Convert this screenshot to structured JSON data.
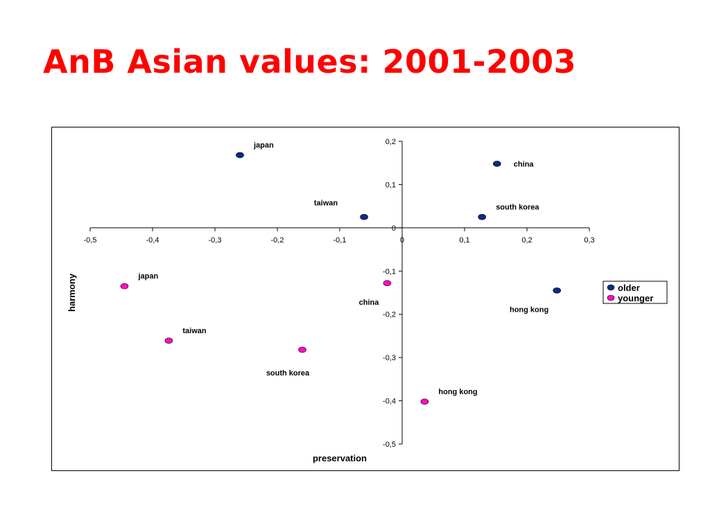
{
  "slide": {
    "title": "AnB Asian values: 2001-2003"
  },
  "chart_data": {
    "type": "scatter",
    "title": "",
    "xlabel": "preservation",
    "ylabel": "harmony",
    "xlim": [
      -0.5,
      0.3
    ],
    "ylim": [
      -0.5,
      0.2
    ],
    "x_ticks": [
      -0.5,
      -0.4,
      -0.3,
      -0.2,
      -0.1,
      0,
      0.1,
      0.2,
      0.3
    ],
    "y_ticks": [
      -0.5,
      -0.4,
      -0.3,
      -0.2,
      -0.1,
      0,
      0.1,
      0.2
    ],
    "x_tick_labels": [
      "-0,5",
      "-0,4",
      "-0,3",
      "-0,2",
      "-0,1",
      "0",
      "0,1",
      "0,2",
      "0,3"
    ],
    "y_tick_labels": [
      "-0,5",
      "-0,4",
      "-0,3",
      "-0,2",
      "-0,1",
      "0",
      "0,1",
      "0,2"
    ],
    "grid": false,
    "legend_position": "right",
    "series": [
      {
        "name": "older",
        "color": "#0a2a8a",
        "points": [
          {
            "label": "japan",
            "x": -0.26,
            "y": 0.168,
            "label_position": "upper-right"
          },
          {
            "label": "china",
            "x": 0.152,
            "y": 0.148,
            "label_position": "right"
          },
          {
            "label": "taiwan",
            "x": -0.061,
            "y": 0.025,
            "label_position": "upper-left"
          },
          {
            "label": "south korea",
            "x": 0.128,
            "y": 0.025,
            "label_position": "upper-right"
          },
          {
            "label": "hong kong",
            "x": 0.248,
            "y": -0.145,
            "label_position": "lower-left"
          }
        ]
      },
      {
        "name": "younger",
        "color": "#ff10c0",
        "points": [
          {
            "label": "japan",
            "x": -0.445,
            "y": -0.135,
            "label_position": "upper-right"
          },
          {
            "label": "china",
            "x": -0.024,
            "y": -0.128,
            "label_position": "lower-left"
          },
          {
            "label": "taiwan",
            "x": -0.374,
            "y": -0.261,
            "label_position": "upper-right"
          },
          {
            "label": "south korea",
            "x": -0.16,
            "y": -0.282,
            "label_position": "below"
          },
          {
            "label": "hong kong",
            "x": 0.036,
            "y": -0.402,
            "label_position": "upper-right"
          }
        ]
      }
    ]
  }
}
